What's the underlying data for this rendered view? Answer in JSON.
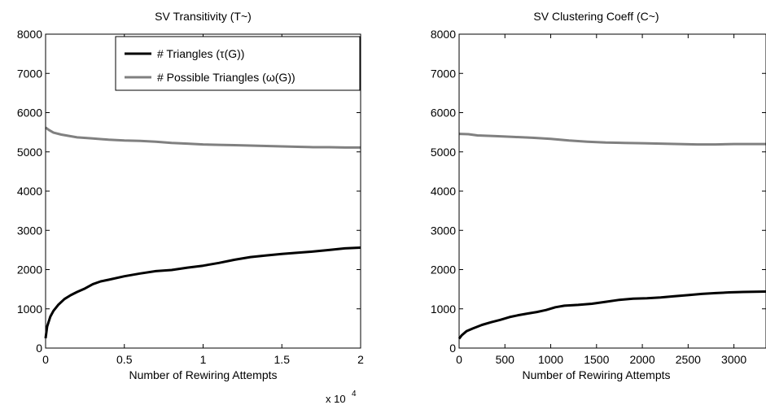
{
  "chart_data": [
    {
      "type": "line",
      "title": "SV Transitivity (T~)",
      "xlabel": "Number of Rewiring Attempts",
      "ylabel": "",
      "x_exponent_label": "x 10",
      "x_exponent_power": "4",
      "xlim": [
        0,
        2
      ],
      "ylim": [
        0,
        8000
      ],
      "xticks": [
        0,
        0.5,
        1,
        1.5,
        2
      ],
      "xtick_labels": [
        "0",
        "0.5",
        "1",
        "1.5",
        "2"
      ],
      "yticks": [
        0,
        1000,
        2000,
        3000,
        4000,
        5000,
        6000,
        7000,
        8000
      ],
      "ytick_labels": [
        "0",
        "1000",
        "2000",
        "3000",
        "4000",
        "5000",
        "6000",
        "7000",
        "8000"
      ],
      "legend_position": "top-right",
      "series": [
        {
          "name": "# Triangles (τ(G))",
          "color": "#000000",
          "x": [
            0,
            0.01,
            0.03,
            0.05,
            0.08,
            0.12,
            0.16,
            0.2,
            0.25,
            0.3,
            0.35,
            0.4,
            0.5,
            0.6,
            0.7,
            0.8,
            0.9,
            1.0,
            1.1,
            1.2,
            1.3,
            1.4,
            1.5,
            1.6,
            1.7,
            1.8,
            1.9,
            2.0
          ],
          "y": [
            250,
            550,
            800,
            950,
            1100,
            1250,
            1350,
            1430,
            1520,
            1630,
            1700,
            1740,
            1830,
            1900,
            1960,
            1990,
            2050,
            2100,
            2170,
            2250,
            2320,
            2360,
            2400,
            2430,
            2460,
            2500,
            2540,
            2560
          ]
        },
        {
          "name": "# Possible Triangles (ω(G))",
          "color": "#808080",
          "x": [
            0,
            0.02,
            0.05,
            0.1,
            0.2,
            0.3,
            0.4,
            0.5,
            0.6,
            0.7,
            0.8,
            0.9,
            1.0,
            1.1,
            1.2,
            1.3,
            1.4,
            1.5,
            1.6,
            1.7,
            1.8,
            1.9,
            2.0
          ],
          "y": [
            5620,
            5560,
            5490,
            5440,
            5370,
            5340,
            5310,
            5290,
            5280,
            5260,
            5230,
            5210,
            5190,
            5180,
            5170,
            5160,
            5150,
            5140,
            5130,
            5120,
            5120,
            5110,
            5110
          ]
        }
      ]
    },
    {
      "type": "line",
      "title": "SV Clustering Coeff (C~)",
      "xlabel": "Number of Rewiring Attempts",
      "ylabel": "",
      "xlim": [
        0,
        3350
      ],
      "ylim": [
        0,
        8000
      ],
      "xticks": [
        0,
        500,
        1000,
        1500,
        2000,
        2500,
        3000
      ],
      "xtick_labels": [
        "0",
        "500",
        "1000",
        "1500",
        "2000",
        "2500",
        "3000"
      ],
      "yticks": [
        0,
        1000,
        2000,
        3000,
        4000,
        5000,
        6000,
        7000,
        8000
      ],
      "ytick_labels": [
        "0",
        "1000",
        "2000",
        "3000",
        "4000",
        "5000",
        "6000",
        "7000",
        "8000"
      ],
      "series": [
        {
          "color": "#000000",
          "x": [
            0,
            30,
            80,
            150,
            250,
            350,
            450,
            550,
            650,
            750,
            850,
            950,
            1050,
            1150,
            1300,
            1450,
            1600,
            1750,
            1900,
            2050,
            2200,
            2350,
            2500,
            2650,
            2800,
            2950,
            3100,
            3350
          ],
          "y": [
            240,
            330,
            430,
            500,
            590,
            660,
            720,
            790,
            840,
            880,
            920,
            970,
            1040,
            1080,
            1100,
            1130,
            1180,
            1230,
            1260,
            1270,
            1290,
            1320,
            1350,
            1380,
            1400,
            1420,
            1430,
            1440
          ]
        },
        {
          "color": "#808080",
          "x": [
            0,
            100,
            200,
            400,
            600,
            800,
            1000,
            1200,
            1400,
            1600,
            1800,
            2000,
            2200,
            2400,
            2600,
            2800,
            3000,
            3200,
            3350
          ],
          "y": [
            5460,
            5450,
            5420,
            5400,
            5380,
            5360,
            5330,
            5290,
            5260,
            5240,
            5230,
            5220,
            5210,
            5200,
            5190,
            5190,
            5200,
            5200,
            5200
          ]
        }
      ]
    }
  ]
}
